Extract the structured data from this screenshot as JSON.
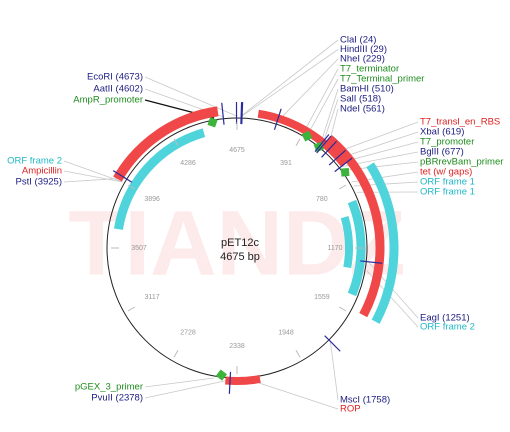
{
  "title": "pET12c",
  "length": "4675 bp",
  "watermark": "TIANDZ",
  "position_labels": [
    "4675",
    "391",
    "780",
    "1170",
    "1559",
    "1948",
    "2338",
    "2728",
    "3117",
    "3507",
    "3896",
    "4286"
  ],
  "features": [
    {
      "label": "ClaI (24)",
      "color": "#1c1c80"
    },
    {
      "label": "HindIII (29)",
      "color": "#1c1c80"
    },
    {
      "label": "NheI (229)",
      "color": "#1c1c80"
    },
    {
      "label": "T7_terminator",
      "color": "#1e8c1e"
    },
    {
      "label": "T7_Terminal_primer",
      "color": "#1e8c1e"
    },
    {
      "label": "BamHI (510)",
      "color": "#1c1c80"
    },
    {
      "label": "SalI (518)",
      "color": "#1c1c80"
    },
    {
      "label": "NdeI (561)",
      "color": "#1c1c80"
    },
    {
      "label": "T7_transl_en_RBS",
      "color": "#e02020"
    },
    {
      "label": "XbaI (619)",
      "color": "#1c1c80"
    },
    {
      "label": "T7_promoter",
      "color": "#1e8c1e"
    },
    {
      "label": "BglII (677)",
      "color": "#1c1c80"
    },
    {
      "label": "pBRrevBam_primer",
      "color": "#1e8c1e"
    },
    {
      "label": "tet (w/ gaps)",
      "color": "#e02020"
    },
    {
      "label": "ORF frame 1",
      "color": "#20b8c8"
    },
    {
      "label": "ORF frame 1",
      "color": "#20b8c8"
    },
    {
      "label": "EagI (1251)",
      "color": "#1c1c80"
    },
    {
      "label": "ORF frame 2",
      "color": "#20b8c8"
    },
    {
      "label": "MscI (1758)",
      "color": "#1c1c80"
    },
    {
      "label": "ROP",
      "color": "#e02020"
    },
    {
      "label": "EcoRI (4673)",
      "color": "#1c1c80"
    },
    {
      "label": "AatII (4602)",
      "color": "#1c1c80"
    },
    {
      "label": "AmpR_promoter",
      "color": "#1e8c1e"
    },
    {
      "label": "ORF frame 2",
      "color": "#20b8c8"
    },
    {
      "label": "Ampicillin",
      "color": "#e02020"
    },
    {
      "label": "PstI (3925)",
      "color": "#1c1c80"
    },
    {
      "label": "pGEX_3_primer",
      "color": "#1e8c1e"
    },
    {
      "label": "PvuII (2378)",
      "color": "#1c1c80"
    }
  ]
}
